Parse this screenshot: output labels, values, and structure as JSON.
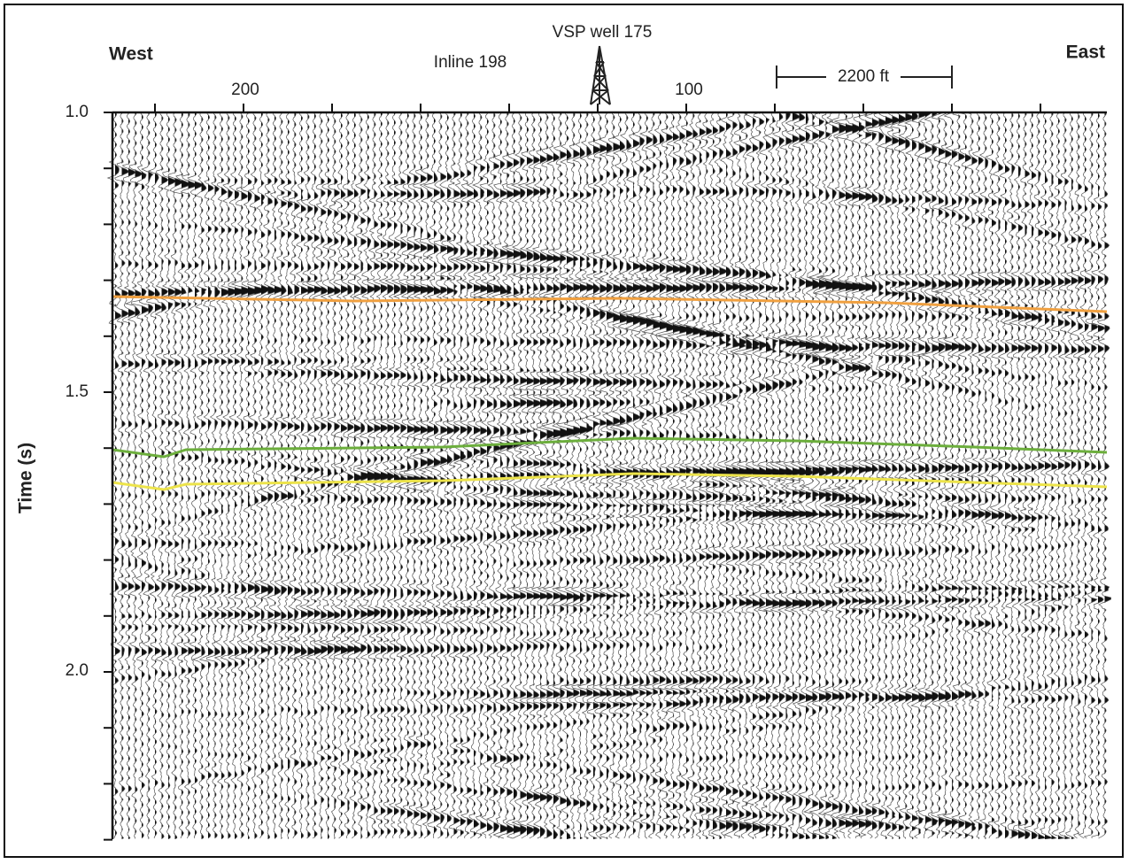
{
  "labels": {
    "west": "West",
    "east": "East",
    "inline": "Inline 198",
    "well": "VSP well 175",
    "scale": "2200 ft"
  },
  "top_axis": {
    "ticks": [
      "200",
      "100"
    ]
  },
  "left_axis": {
    "title": "Time (s)",
    "ticks": [
      "1.0",
      "1.5",
      "2.0"
    ]
  },
  "horizons": [
    {
      "color": "#f0a040"
    },
    {
      "color": "#6cae3c"
    },
    {
      "color": "#ece34a"
    }
  ]
}
